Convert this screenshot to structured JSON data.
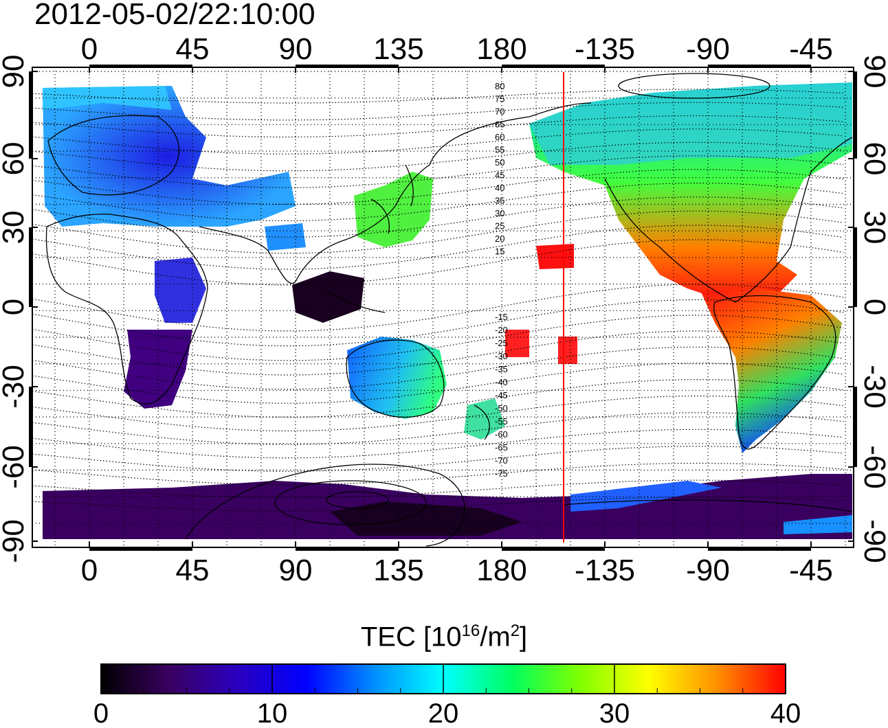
{
  "title": "2012-05-02/22:10:00",
  "map": {
    "x_ticks": [
      "0",
      "45",
      "90",
      "135",
      "180",
      "-135",
      "-90",
      "-45"
    ],
    "y_ticks_left": [
      "90",
      "60",
      "30",
      "0",
      "-30",
      "-60",
      "-90"
    ],
    "y_ticks_right": [
      "90",
      "60",
      "30",
      "0",
      "-30",
      "-60",
      "-90"
    ],
    "contour_labels_north": [
      "80",
      "75",
      "70",
      "65",
      "60",
      "55",
      "50",
      "45",
      "40",
      "35",
      "30",
      "25",
      "20",
      "15"
    ],
    "contour_labels_south": [
      "-15",
      "-20",
      "-25",
      "-30",
      "-35",
      "-40",
      "-45",
      "-50",
      "-55",
      "-60",
      "-65",
      "-70",
      "-75"
    ],
    "marker_line_color": "#ff0000"
  },
  "colorbar": {
    "title_text": "TEC  [10",
    "title_sup1": "16",
    "title_mid": "/m",
    "title_sup2": "2",
    "title_end": "]",
    "tick_labels": [
      "0",
      "10",
      "20",
      "30",
      "40"
    ],
    "range": [
      0,
      40
    ],
    "colors": [
      "#000000",
      "#3a0060",
      "#2a00c0",
      "#0000ff",
      "#0090ff",
      "#00ffff",
      "#00ff60",
      "#80ff00",
      "#ffff00",
      "#ff9000",
      "#ff0000"
    ]
  }
}
